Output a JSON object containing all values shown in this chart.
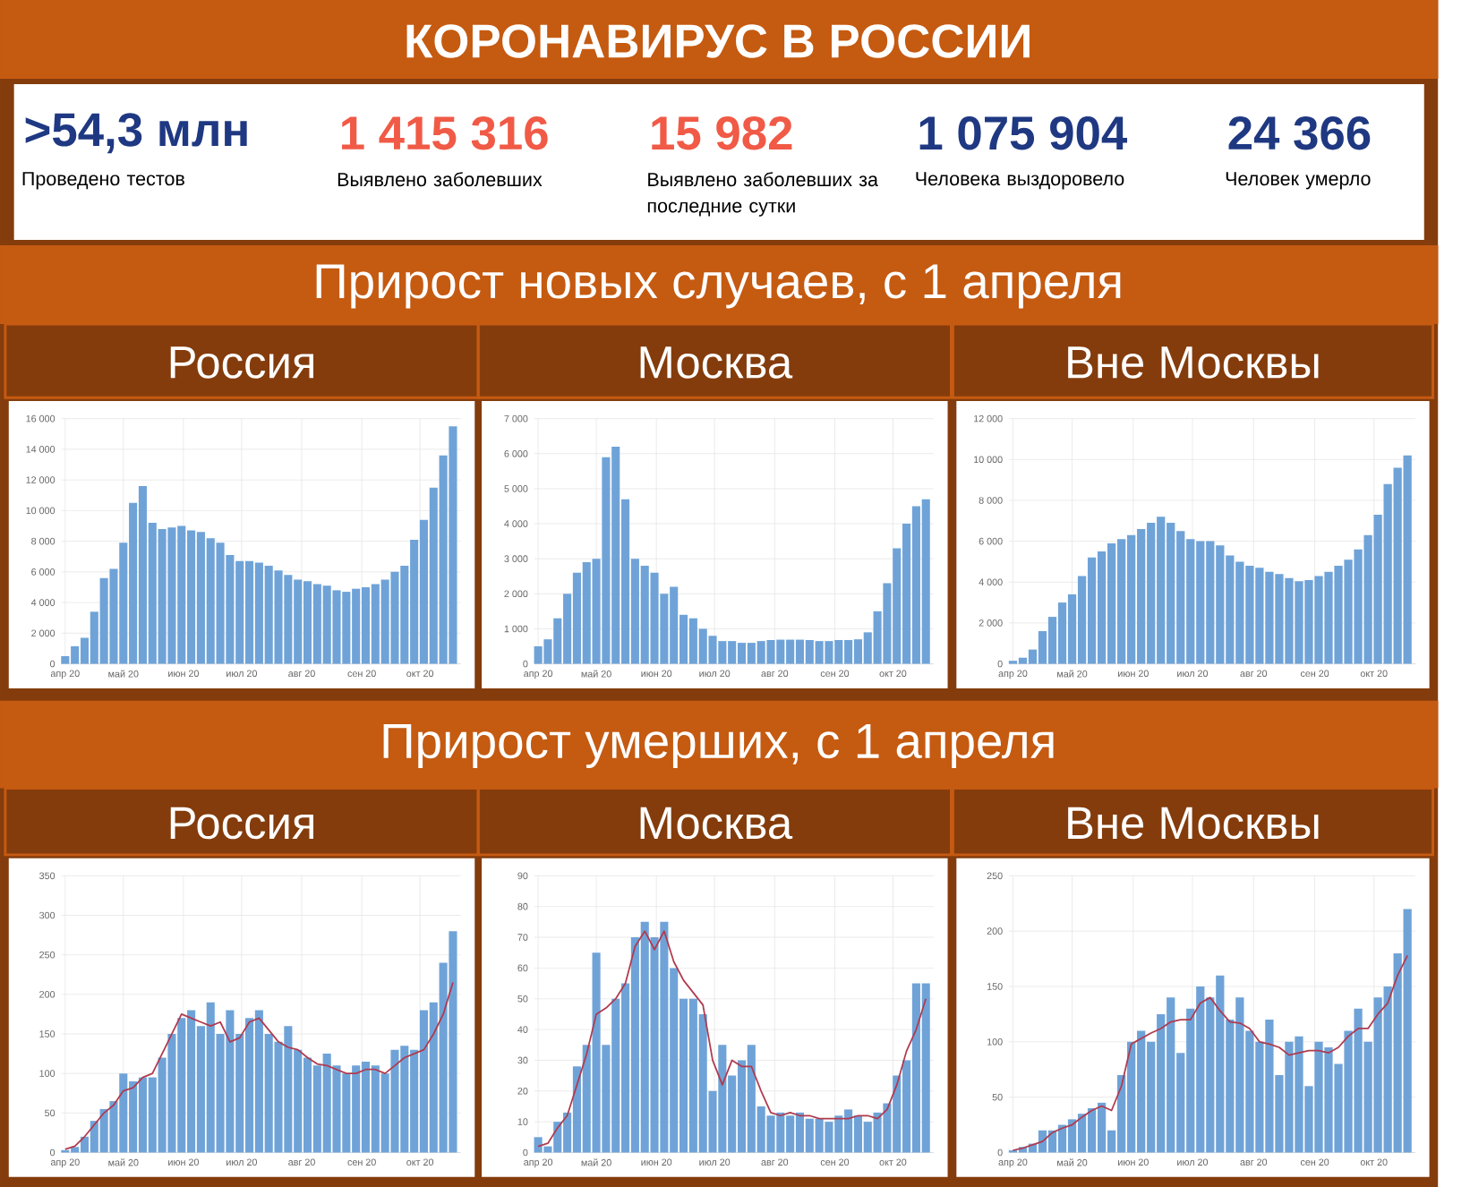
{
  "chart_data": [
    {
      "type": "other",
      "title": "КОРОНАВИРУС В РОССИИ",
      "annotations": [
        ">54,3 млн",
        "Проведено тестов",
        "1 415 316",
        "Выявлено заболевших",
        "15 982",
        "Выявлено заболевших за последние сутки",
        "1 075 904",
        "Человека выздоровело",
        "24 366",
        "Человек умерло"
      ]
    },
    {
      "type": "other",
      "title": "Прирост новых случаев, с 1 апреля"
    },
    {
      "type": "bar",
      "title": "Россия",
      "grid": true,
      "x": [
        "2020-04-01",
        "2020-04-06",
        "2020-04-11",
        "2020-04-16",
        "2020-04-21",
        "2020-04-26",
        "2020-05-01",
        "2020-05-06",
        "2020-05-11",
        "2020-05-16",
        "2020-05-21",
        "2020-05-26",
        "2020-05-31",
        "2020-06-05",
        "2020-06-10",
        "2020-06-15",
        "2020-06-20",
        "2020-06-25",
        "2020-06-30",
        "2020-07-05",
        "2020-07-10",
        "2020-07-15",
        "2020-07-20",
        "2020-07-25",
        "2020-07-30",
        "2020-08-04",
        "2020-08-09",
        "2020-08-14",
        "2020-08-19",
        "2020-08-24",
        "2020-08-29",
        "2020-09-03",
        "2020-09-08",
        "2020-09-13",
        "2020-09-18",
        "2020-09-23",
        "2020-09-28",
        "2020-10-03",
        "2020-10-08",
        "2020-10-13",
        "2020-10-18"
      ],
      "xlim": [
        "2020-03-30",
        "2020-10-22"
      ],
      "xticks": [
        {
          "value": "2020-04-01",
          "label": "апр 20"
        },
        {
          "value": "2020-05-01",
          "label": "май 20"
        },
        {
          "value": "2020-06-01",
          "label": "июн 20"
        },
        {
          "value": "2020-07-01",
          "label": "июл 20"
        },
        {
          "value": "2020-08-01",
          "label": "авг 20"
        },
        {
          "value": "2020-09-01",
          "label": "сен 20"
        },
        {
          "value": "2020-10-01",
          "label": "окт 20"
        }
      ],
      "ylim": [
        0,
        16000
      ],
      "yticks": [
        0,
        {
          "value": 2000,
          "label": "2 000"
        },
        {
          "value": 4000,
          "label": "4 000"
        },
        {
          "value": 6000,
          "label": "6 000"
        },
        {
          "value": 8000,
          "label": "8 000"
        },
        {
          "value": 10000,
          "label": "10 000"
        },
        {
          "value": 12000,
          "label": "12 000"
        },
        {
          "value": 14000,
          "label": "14 000"
        },
        {
          "value": 16000,
          "label": "16 000"
        }
      ],
      "series": [
        {
          "color": "#6fa3d8",
          "values": [
            500,
            1150,
            1700,
            3400,
            5600,
            6200,
            7900,
            10500,
            11600,
            9200,
            8800,
            8900,
            9000,
            8700,
            8600,
            8200,
            7900,
            7100,
            6700,
            6700,
            6600,
            6400,
            6100,
            5800,
            5500,
            5400,
            5200,
            5100,
            4800,
            4700,
            4900,
            5000,
            5200,
            5500,
            6000,
            6400,
            8100,
            9400,
            11500,
            13600,
            15500
          ]
        }
      ]
    },
    {
      "type": "bar",
      "title": "Москва",
      "grid": true,
      "x": [
        "2020-04-01",
        "2020-04-06",
        "2020-04-11",
        "2020-04-16",
        "2020-04-21",
        "2020-04-26",
        "2020-05-01",
        "2020-05-06",
        "2020-05-11",
        "2020-05-16",
        "2020-05-21",
        "2020-05-26",
        "2020-05-31",
        "2020-06-05",
        "2020-06-10",
        "2020-06-15",
        "2020-06-20",
        "2020-06-25",
        "2020-06-30",
        "2020-07-05",
        "2020-07-10",
        "2020-07-15",
        "2020-07-20",
        "2020-07-25",
        "2020-07-30",
        "2020-08-04",
        "2020-08-09",
        "2020-08-14",
        "2020-08-19",
        "2020-08-24",
        "2020-08-29",
        "2020-09-03",
        "2020-09-08",
        "2020-09-13",
        "2020-09-18",
        "2020-09-23",
        "2020-09-28",
        "2020-10-03",
        "2020-10-08",
        "2020-10-13",
        "2020-10-18"
      ],
      "xlim": [
        "2020-03-30",
        "2020-10-22"
      ],
      "xticks": [
        {
          "value": "2020-04-01",
          "label": "апр 20"
        },
        {
          "value": "2020-05-01",
          "label": "май 20"
        },
        {
          "value": "2020-06-01",
          "label": "июн 20"
        },
        {
          "value": "2020-07-01",
          "label": "июл 20"
        },
        {
          "value": "2020-08-01",
          "label": "авг 20"
        },
        {
          "value": "2020-09-01",
          "label": "сен 20"
        },
        {
          "value": "2020-10-01",
          "label": "окт 20"
        }
      ],
      "ylim": [
        0,
        7000
      ],
      "yticks": [
        0,
        {
          "value": 1000,
          "label": "1 000"
        },
        {
          "value": 2000,
          "label": "2 000"
        },
        {
          "value": 3000,
          "label": "3 000"
        },
        {
          "value": 4000,
          "label": "4 000"
        },
        {
          "value": 5000,
          "label": "5 000"
        },
        {
          "value": 6000,
          "label": "6 000"
        },
        {
          "value": 7000,
          "label": "7 000"
        }
      ],
      "series": [
        {
          "color": "#6fa3d8",
          "values": [
            500,
            700,
            1300,
            2000,
            2600,
            2900,
            3000,
            5900,
            6200,
            4700,
            3000,
            2800,
            2600,
            2000,
            2200,
            1400,
            1300,
            1000,
            800,
            650,
            650,
            600,
            600,
            650,
            680,
            690,
            690,
            690,
            680,
            650,
            650,
            680,
            680,
            700,
            900,
            1500,
            2300,
            3300,
            4000,
            4500,
            4700
          ]
        }
      ]
    },
    {
      "type": "bar",
      "title": "Вне Москвы",
      "grid": true,
      "x": [
        "2020-04-01",
        "2020-04-06",
        "2020-04-11",
        "2020-04-16",
        "2020-04-21",
        "2020-04-26",
        "2020-05-01",
        "2020-05-06",
        "2020-05-11",
        "2020-05-16",
        "2020-05-21",
        "2020-05-26",
        "2020-05-31",
        "2020-06-05",
        "2020-06-10",
        "2020-06-15",
        "2020-06-20",
        "2020-06-25",
        "2020-06-30",
        "2020-07-05",
        "2020-07-10",
        "2020-07-15",
        "2020-07-20",
        "2020-07-25",
        "2020-07-30",
        "2020-08-04",
        "2020-08-09",
        "2020-08-14",
        "2020-08-19",
        "2020-08-24",
        "2020-08-29",
        "2020-09-03",
        "2020-09-08",
        "2020-09-13",
        "2020-09-18",
        "2020-09-23",
        "2020-09-28",
        "2020-10-03",
        "2020-10-08",
        "2020-10-13",
        "2020-10-18"
      ],
      "xlim": [
        "2020-03-30",
        "2020-10-22"
      ],
      "xticks": [
        {
          "value": "2020-04-01",
          "label": "апр 20"
        },
        {
          "value": "2020-05-01",
          "label": "май 20"
        },
        {
          "value": "2020-06-01",
          "label": "июн 20"
        },
        {
          "value": "2020-07-01",
          "label": "июл 20"
        },
        {
          "value": "2020-08-01",
          "label": "авг 20"
        },
        {
          "value": "2020-09-01",
          "label": "сен 20"
        },
        {
          "value": "2020-10-01",
          "label": "окт 20"
        }
      ],
      "ylim": [
        0,
        12000
      ],
      "yticks": [
        0,
        {
          "value": 2000,
          "label": "2 000"
        },
        {
          "value": 4000,
          "label": "4 000"
        },
        {
          "value": 6000,
          "label": "6 000"
        },
        {
          "value": 8000,
          "label": "8 000"
        },
        {
          "value": 10000,
          "label": "10 000"
        },
        {
          "value": 12000,
          "label": "12 000"
        }
      ],
      "series": [
        {
          "color": "#6fa3d8",
          "values": [
            150,
            300,
            700,
            1600,
            2300,
            3000,
            3400,
            4300,
            5200,
            5500,
            5900,
            6100,
            6300,
            6600,
            6900,
            7200,
            6900,
            6500,
            6100,
            6000,
            6000,
            5800,
            5300,
            5000,
            4800,
            4700,
            4500,
            4400,
            4200,
            4050,
            4100,
            4300,
            4500,
            4800,
            5100,
            5600,
            6300,
            7300,
            8800,
            9600,
            10200
          ]
        }
      ]
    },
    {
      "type": "other",
      "title": "Прирост умерших, с 1 апреля"
    },
    {
      "type": "bar",
      "title": "Россия",
      "grid": true,
      "x": [
        "2020-04-01",
        "2020-04-06",
        "2020-04-11",
        "2020-04-16",
        "2020-04-21",
        "2020-04-26",
        "2020-05-01",
        "2020-05-06",
        "2020-05-11",
        "2020-05-16",
        "2020-05-21",
        "2020-05-26",
        "2020-05-31",
        "2020-06-05",
        "2020-06-10",
        "2020-06-15",
        "2020-06-20",
        "2020-06-25",
        "2020-06-30",
        "2020-07-05",
        "2020-07-10",
        "2020-07-15",
        "2020-07-20",
        "2020-07-25",
        "2020-07-30",
        "2020-08-04",
        "2020-08-09",
        "2020-08-14",
        "2020-08-19",
        "2020-08-24",
        "2020-08-29",
        "2020-09-03",
        "2020-09-08",
        "2020-09-13",
        "2020-09-18",
        "2020-09-23",
        "2020-09-28",
        "2020-10-03",
        "2020-10-08",
        "2020-10-13",
        "2020-10-18"
      ],
      "xlim": [
        "2020-03-30",
        "2020-10-22"
      ],
      "xticks": [
        {
          "value": "2020-04-01",
          "label": "апр 20"
        },
        {
          "value": "2020-05-01",
          "label": "май 20"
        },
        {
          "value": "2020-06-01",
          "label": "июн 20"
        },
        {
          "value": "2020-07-01",
          "label": "июл 20"
        },
        {
          "value": "2020-08-01",
          "label": "авг 20"
        },
        {
          "value": "2020-09-01",
          "label": "сен 20"
        },
        {
          "value": "2020-10-01",
          "label": "окт 20"
        }
      ],
      "ylim": [
        0,
        350
      ],
      "yticks": [
        0,
        50,
        100,
        150,
        200,
        250,
        300,
        350
      ],
      "series": [
        {
          "color": "#6fa3d8",
          "values": [
            3,
            7,
            20,
            40,
            55,
            65,
            100,
            90,
            95,
            95,
            120,
            150,
            170,
            180,
            160,
            190,
            150,
            180,
            150,
            170,
            180,
            150,
            140,
            160,
            130,
            120,
            110,
            125,
            110,
            100,
            110,
            115,
            110,
            100,
            130,
            135,
            130,
            180,
            190,
            240,
            280
          ]
        },
        {
          "type": "line",
          "color": "#b03a4e",
          "values": [
            4,
            8,
            20,
            35,
            50,
            60,
            78,
            82,
            95,
            100,
            125,
            150,
            175,
            170,
            165,
            160,
            165,
            140,
            145,
            165,
            170,
            155,
            140,
            133,
            130,
            120,
            112,
            110,
            105,
            100,
            100,
            105,
            105,
            100,
            110,
            120,
            125,
            130,
            150,
            175,
            215
          ]
        }
      ]
    },
    {
      "type": "bar",
      "title": "Москва",
      "grid": true,
      "x": [
        "2020-04-01",
        "2020-04-06",
        "2020-04-11",
        "2020-04-16",
        "2020-04-21",
        "2020-04-26",
        "2020-05-01",
        "2020-05-06",
        "2020-05-11",
        "2020-05-16",
        "2020-05-21",
        "2020-05-26",
        "2020-05-31",
        "2020-06-05",
        "2020-06-10",
        "2020-06-15",
        "2020-06-20",
        "2020-06-25",
        "2020-06-30",
        "2020-07-05",
        "2020-07-10",
        "2020-07-15",
        "2020-07-20",
        "2020-07-25",
        "2020-07-30",
        "2020-08-04",
        "2020-08-09",
        "2020-08-14",
        "2020-08-19",
        "2020-08-24",
        "2020-08-29",
        "2020-09-03",
        "2020-09-08",
        "2020-09-13",
        "2020-09-18",
        "2020-09-23",
        "2020-09-28",
        "2020-10-03",
        "2020-10-08",
        "2020-10-13",
        "2020-10-18"
      ],
      "xlim": [
        "2020-03-30",
        "2020-10-22"
      ],
      "xticks": [
        {
          "value": "2020-04-01",
          "label": "апр 20"
        },
        {
          "value": "2020-05-01",
          "label": "май 20"
        },
        {
          "value": "2020-06-01",
          "label": "июн 20"
        },
        {
          "value": "2020-07-01",
          "label": "июл 20"
        },
        {
          "value": "2020-08-01",
          "label": "авг 20"
        },
        {
          "value": "2020-09-01",
          "label": "сен 20"
        },
        {
          "value": "2020-10-01",
          "label": "окт 20"
        }
      ],
      "ylim": [
        0,
        90
      ],
      "yticks": [
        0,
        10,
        20,
        30,
        40,
        50,
        60,
        70,
        80,
        90
      ],
      "series": [
        {
          "color": "#6fa3d8",
          "values": [
            5,
            2,
            10,
            13,
            28,
            35,
            65,
            35,
            50,
            55,
            70,
            75,
            70,
            75,
            60,
            50,
            50,
            45,
            20,
            35,
            25,
            30,
            35,
            15,
            12,
            13,
            12,
            13,
            11,
            11,
            10,
            12,
            14,
            12,
            10,
            13,
            16,
            25,
            30,
            55,
            55
          ]
        },
        {
          "type": "line",
          "color": "#b03a4e",
          "values": [
            2,
            3,
            8,
            12,
            22,
            32,
            45,
            47,
            50,
            55,
            67,
            72,
            66,
            72,
            62,
            56,
            52,
            48,
            30,
            22,
            30,
            28,
            28,
            20,
            13,
            12,
            13,
            12,
            12,
            11,
            11,
            11,
            11,
            12,
            12,
            11,
            14,
            22,
            33,
            40,
            50
          ]
        }
      ]
    },
    {
      "type": "bar",
      "title": "Вне Москвы",
      "grid": true,
      "x": [
        "2020-04-01",
        "2020-04-06",
        "2020-04-11",
        "2020-04-16",
        "2020-04-21",
        "2020-04-26",
        "2020-05-01",
        "2020-05-06",
        "2020-05-11",
        "2020-05-16",
        "2020-05-21",
        "2020-05-26",
        "2020-05-31",
        "2020-06-05",
        "2020-06-10",
        "2020-06-15",
        "2020-06-20",
        "2020-06-25",
        "2020-06-30",
        "2020-07-05",
        "2020-07-10",
        "2020-07-15",
        "2020-07-20",
        "2020-07-25",
        "2020-07-30",
        "2020-08-04",
        "2020-08-09",
        "2020-08-14",
        "2020-08-19",
        "2020-08-24",
        "2020-08-29",
        "2020-09-03",
        "2020-09-08",
        "2020-09-13",
        "2020-09-18",
        "2020-09-23",
        "2020-09-28",
        "2020-10-03",
        "2020-10-08",
        "2020-10-13",
        "2020-10-18"
      ],
      "xlim": [
        "2020-03-30",
        "2020-10-22"
      ],
      "xticks": [
        {
          "value": "2020-04-01",
          "label": "апр 20"
        },
        {
          "value": "2020-05-01",
          "label": "май 20"
        },
        {
          "value": "2020-06-01",
          "label": "июн 20"
        },
        {
          "value": "2020-07-01",
          "label": "июл 20"
        },
        {
          "value": "2020-08-01",
          "label": "авг 20"
        },
        {
          "value": "2020-09-01",
          "label": "сен 20"
        },
        {
          "value": "2020-10-01",
          "label": "окт 20"
        }
      ],
      "ylim": [
        0,
        250
      ],
      "yticks": [
        0,
        50,
        100,
        150,
        200,
        250
      ],
      "series": [
        {
          "color": "#6fa3d8",
          "values": [
            2,
            5,
            8,
            20,
            20,
            25,
            30,
            35,
            40,
            45,
            20,
            70,
            100,
            110,
            100,
            125,
            140,
            90,
            130,
            150,
            140,
            160,
            120,
            140,
            110,
            100,
            120,
            70,
            100,
            105,
            60,
            100,
            95,
            80,
            110,
            130,
            100,
            140,
            150,
            180,
            220
          ]
        },
        {
          "type": "line",
          "color": "#b03a4e",
          "values": [
            2,
            4,
            7,
            10,
            18,
            22,
            25,
            32,
            38,
            42,
            38,
            60,
            98,
            103,
            108,
            112,
            118,
            120,
            120,
            135,
            140,
            128,
            118,
            117,
            112,
            100,
            98,
            95,
            88,
            90,
            92,
            92,
            90,
            95,
            105,
            112,
            112,
            125,
            135,
            160,
            178
          ]
        }
      ]
    }
  ]
}
